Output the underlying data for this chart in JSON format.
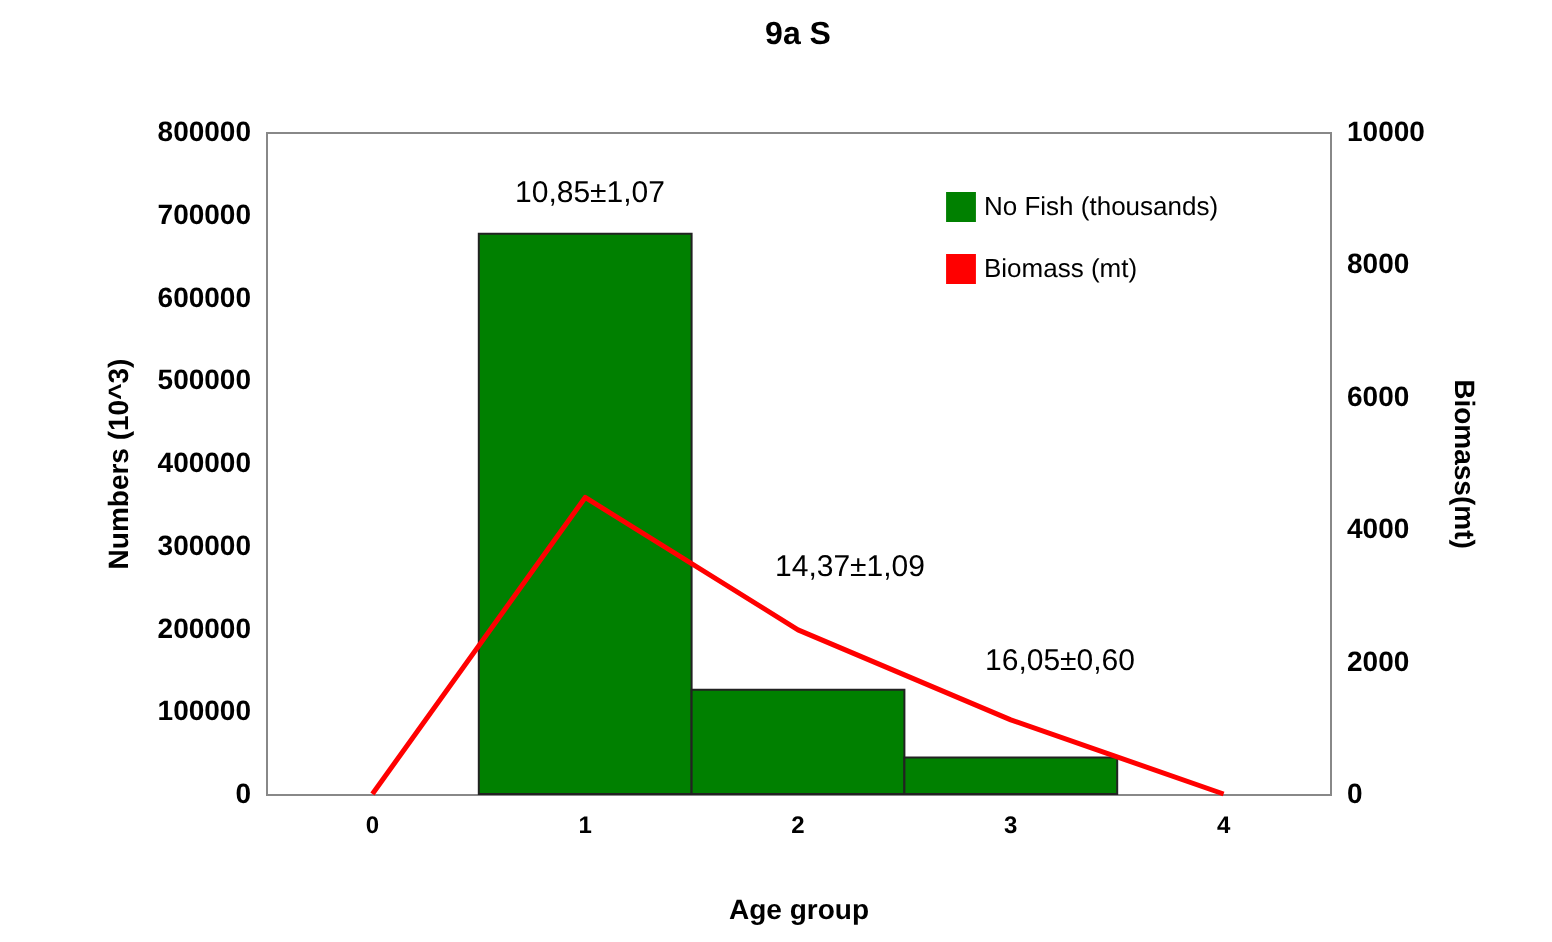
{
  "chart_data": {
    "type": "bar",
    "title": "9a S",
    "xlabel": "Age group",
    "ylabel": "Numbers (10^3)",
    "y2label": "Biomass(mt)",
    "categories": [
      "0",
      "1",
      "2",
      "3",
      "4"
    ],
    "series": [
      {
        "name": "No Fish (thousands)",
        "color": "#008000",
        "values": [
          null,
          677000,
          126000,
          44000,
          null
        ]
      },
      {
        "name": "Biomass (mt)",
        "type": "line",
        "axis": "y2",
        "color": "#ff0000",
        "values": [
          0,
          4480,
          2480,
          1120,
          0
        ]
      }
    ],
    "ylim": [
      0,
      800000
    ],
    "yticks": [
      0,
      100000,
      200000,
      300000,
      400000,
      500000,
      600000,
      700000,
      800000
    ],
    "y2lim": [
      0,
      10000
    ],
    "y2ticks": [
      0,
      2000,
      4000,
      6000,
      8000,
      10000
    ],
    "annotations": [
      "10,85±1,07",
      "14,37±1,09",
      "16,05±0,60"
    ],
    "legend": "top right",
    "grid": false,
    "marker": "none"
  }
}
